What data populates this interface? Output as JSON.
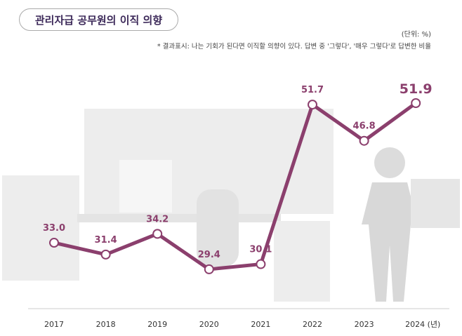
{
  "chart_data": {
    "type": "line",
    "title": "관리자급 공무원의 이직 의향",
    "unit": "(단위: %)",
    "note": "* 결과표시: 나는 기회가 된다면 이직할 의향이 있다. 답변 중 '그렇다', '매우 그렇다'로 답변한 비율",
    "categories": [
      "2017",
      "2018",
      "2019",
      "2020",
      "2021",
      "2022",
      "2023",
      "2024"
    ],
    "x_suffix": "(년)",
    "values": [
      33.0,
      31.4,
      34.2,
      29.4,
      30.1,
      51.7,
      46.8,
      51.9
    ],
    "labels": [
      "33.0",
      "31.4",
      "34.2",
      "29.4",
      "30.1",
      "51.7",
      "46.8",
      "51.9"
    ],
    "highlight_index": 7,
    "colors": {
      "line": "#8b3f6d",
      "title": "#3d2a5a",
      "bg_art": "#ececec"
    }
  }
}
